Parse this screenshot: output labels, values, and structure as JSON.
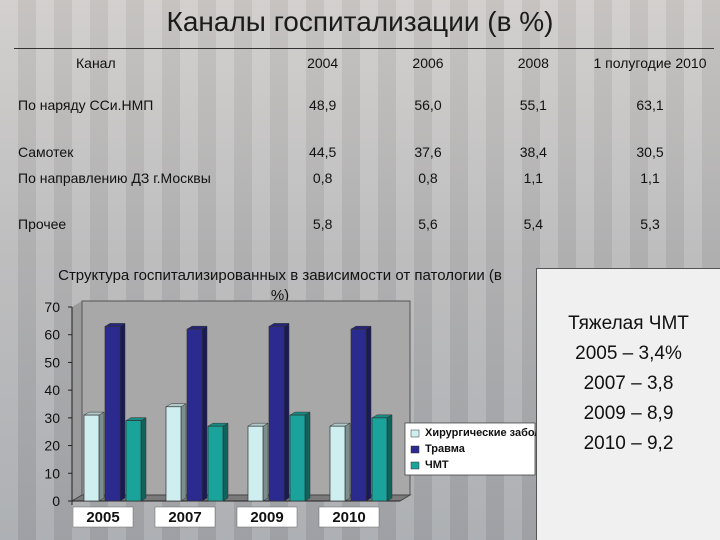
{
  "title": "Каналы госпитализации (в %)",
  "table": {
    "headers": [
      "Канал",
      "2004",
      "2006",
      "2008",
      "1 полугодие 2010"
    ],
    "rows": [
      {
        "label": "По наряду ССи.НМП",
        "values": [
          "48,9",
          "56,0",
          "55,1",
          "63,1"
        ]
      },
      {
        "label": "Самотек",
        "values": [
          "44,5",
          "37,6",
          "38,4",
          "30,5"
        ]
      },
      {
        "label": "По направлению ДЗ г.Москвы",
        "values": [
          "0,8",
          "0,8",
          "1,1",
          "1,1"
        ]
      },
      {
        "label": "Прочее",
        "values": [
          "5,8",
          "5,6",
          "5,4",
          "5,3"
        ]
      }
    ]
  },
  "chart_title": "Структура госпитализированных в зависимости от патологии (в %)",
  "chart_data": {
    "type": "bar",
    "categories": [
      "2005",
      "2007",
      "2009",
      "2010"
    ],
    "series": [
      {
        "name": "Хирургические заболевания",
        "values": [
          31,
          34,
          27,
          27
        ],
        "color": "#cfeef0"
      },
      {
        "name": "Травма",
        "values": [
          63,
          62,
          63,
          62
        ],
        "color": "#2b2b8f"
      },
      {
        "name": "ЧМТ",
        "values": [
          29,
          27,
          31,
          30
        ],
        "color": "#1aa39b"
      }
    ],
    "y_ticks": [
      "0",
      "10",
      "20",
      "30",
      "40",
      "50",
      "60",
      "70"
    ],
    "ylim": [
      0,
      70
    ],
    "grid": false,
    "legend_position": "right"
  },
  "callout": {
    "lines": [
      "Тяжелая ЧМТ",
      "2005 – 3,4%",
      "2007 – 3,8",
      "2009 – 8,9",
      "2010 – 9,2"
    ]
  }
}
